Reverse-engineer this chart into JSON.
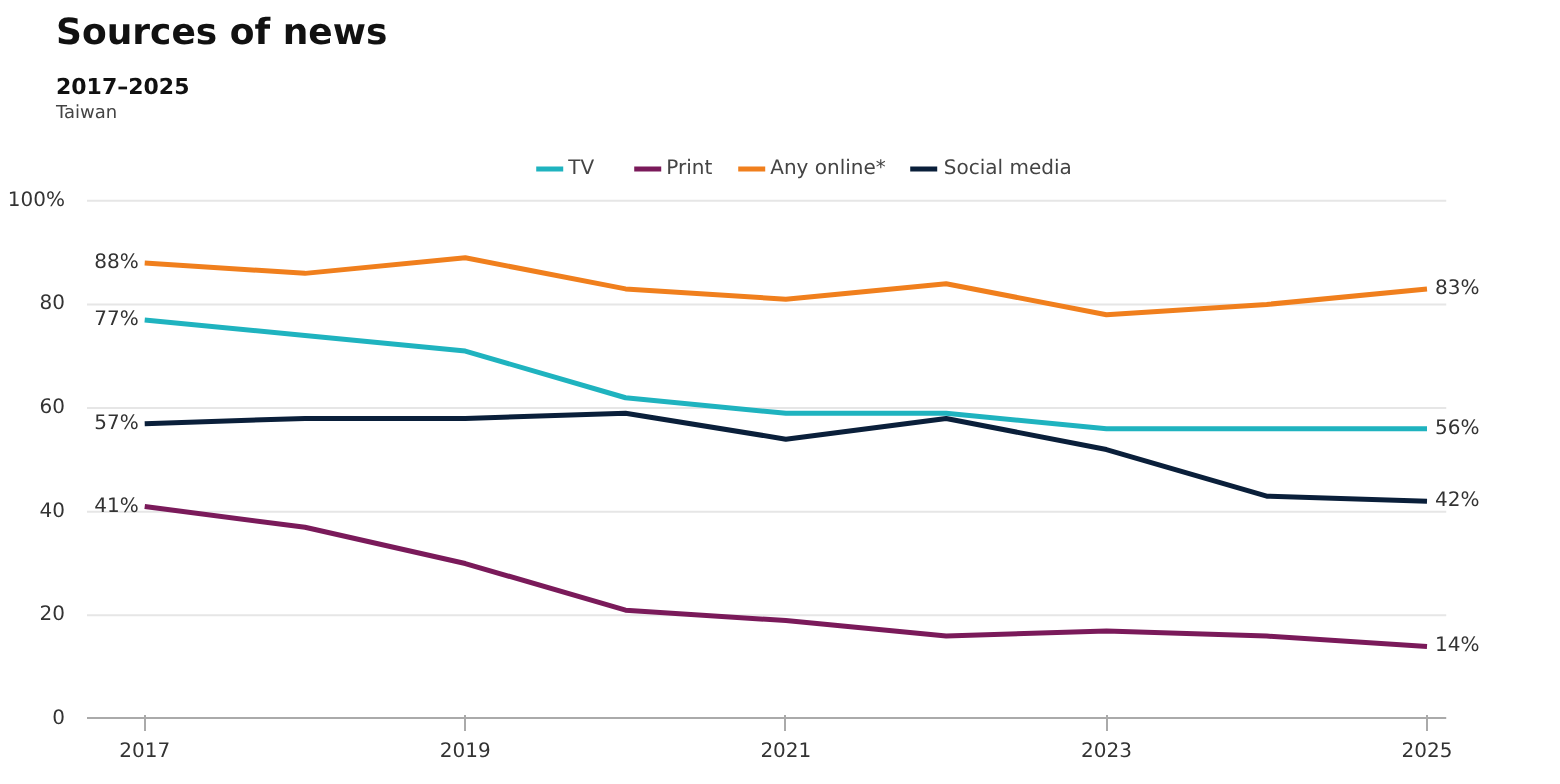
{
  "chart_data": {
    "type": "line",
    "title": "Sources of news",
    "subtitle": "2017–2025",
    "annotations": [
      "Taiwan"
    ],
    "x": [
      2017,
      2018,
      2019,
      2020,
      2021,
      2022,
      2023,
      2024,
      2025
    ],
    "series": [
      {
        "name": "TV",
        "color": "#1fb3bf",
        "values": [
          77,
          74,
          71,
          62,
          59,
          59,
          56,
          56,
          56
        ],
        "value_labels": [
          "77%",
          null,
          null,
          null,
          null,
          null,
          null,
          null,
          "56%"
        ]
      },
      {
        "name": "Print",
        "color": "#7a1a5a",
        "values": [
          41,
          37,
          30,
          21,
          19,
          16,
          17,
          16,
          14
        ],
        "value_labels": [
          "41%",
          null,
          null,
          null,
          null,
          null,
          null,
          null,
          "14%"
        ]
      },
      {
        "name": "Any online*",
        "color": "#f07f1d",
        "values": [
          88,
          86,
          89,
          83,
          81,
          84,
          78,
          80,
          83
        ],
        "value_labels": [
          "88%",
          null,
          null,
          null,
          null,
          null,
          null,
          null,
          "83%"
        ]
      },
      {
        "name": "Social media",
        "color": "#0a1f3a",
        "values": [
          57,
          58,
          58,
          59,
          54,
          58,
          52,
          43,
          42
        ],
        "value_labels": [
          "57%",
          null,
          null,
          null,
          null,
          null,
          null,
          null,
          "42%"
        ]
      }
    ],
    "xlim": [
      2016.64,
      2025.12
    ],
    "xticks": [
      2017,
      2019,
      2021,
      2023,
      2025
    ],
    "ylim": [
      0,
      100
    ],
    "yticks": [
      0,
      20,
      40,
      60,
      80,
      {
        "value": 100,
        "label": "100%"
      }
    ],
    "grid": "y",
    "legend": "top",
    "marker": "none",
    "line_style": "solid"
  }
}
